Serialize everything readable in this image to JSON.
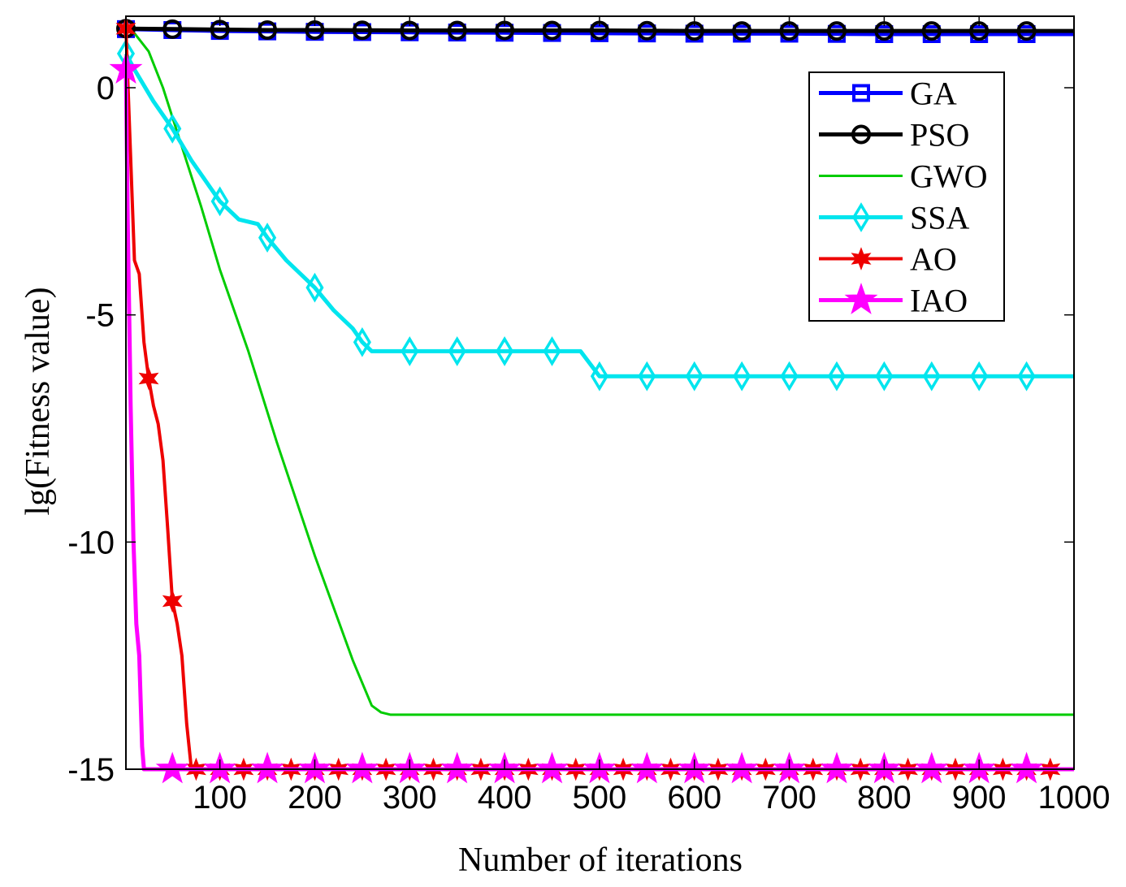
{
  "chart_data": {
    "type": "line",
    "title": "",
    "xlabel": "Number of iterations",
    "ylabel": "lg(Fitness value)",
    "xlim": [
      1,
      1000
    ],
    "ylim": [
      -15,
      1.3
    ],
    "xticks": [
      100,
      200,
      300,
      400,
      500,
      600,
      700,
      800,
      900,
      1000
    ],
    "xtick_labels": [
      "100",
      "200",
      "300",
      "400",
      "500",
      "600",
      "700",
      "800",
      "900",
      "1000"
    ],
    "yticks": [
      0,
      -5,
      -10,
      -15
    ],
    "ytick_labels": [
      "0",
      "-5",
      "-10",
      "-15"
    ],
    "grid": false,
    "legend_position": "top-right",
    "series": [
      {
        "name": "GA",
        "color": "#0000ff",
        "marker": "square",
        "line_width": "thick",
        "x": [
          1,
          50,
          100,
          150,
          200,
          300,
          400,
          500,
          600,
          700,
          800,
          900,
          1000
        ],
        "y": [
          1.29,
          1.27,
          1.25,
          1.24,
          1.23,
          1.22,
          1.21,
          1.2,
          1.19,
          1.19,
          1.18,
          1.18,
          1.18
        ],
        "marker_x": [
          1,
          50,
          100,
          150,
          200,
          250,
          300,
          350,
          400,
          450,
          500,
          550,
          600,
          650,
          700,
          750,
          800,
          850,
          900,
          950
        ]
      },
      {
        "name": "PSO",
        "color": "#000000",
        "marker": "circle",
        "line_width": "thick",
        "x": [
          1,
          50,
          100,
          150,
          200,
          300,
          400,
          500,
          600,
          700,
          800,
          900,
          1000
        ],
        "y": [
          1.3,
          1.29,
          1.28,
          1.27,
          1.27,
          1.26,
          1.26,
          1.26,
          1.25,
          1.25,
          1.25,
          1.25,
          1.25
        ],
        "marker_x": [
          1,
          50,
          100,
          150,
          200,
          250,
          300,
          350,
          400,
          450,
          500,
          550,
          600,
          650,
          700,
          750,
          800,
          850,
          900,
          950
        ]
      },
      {
        "name": "GWO",
        "color": "#00cc00",
        "marker": "none",
        "line_width": "thin",
        "x": [
          1,
          10,
          25,
          40,
          60,
          80,
          100,
          130,
          160,
          200,
          240,
          260,
          270,
          280,
          300,
          1000
        ],
        "y": [
          1.25,
          1.2,
          0.8,
          0.0,
          -1.3,
          -2.6,
          -4.0,
          -5.8,
          -7.8,
          -10.3,
          -12.6,
          -13.6,
          -13.75,
          -13.8,
          -13.8,
          -13.8
        ],
        "marker_x": []
      },
      {
        "name": "SSA",
        "color": "#00e5ee",
        "marker": "diamond",
        "line_width": "thick",
        "x": [
          1,
          10,
          30,
          50,
          70,
          100,
          120,
          140,
          150,
          170,
          200,
          220,
          240,
          250,
          260,
          300,
          480,
          500,
          1000
        ],
        "y": [
          0.75,
          0.4,
          -0.3,
          -0.9,
          -1.6,
          -2.5,
          -2.9,
          -3.0,
          -3.3,
          -3.8,
          -4.4,
          -4.9,
          -5.3,
          -5.6,
          -5.8,
          -5.8,
          -5.8,
          -6.35,
          -6.35
        ],
        "marker_x": [
          1,
          50,
          100,
          150,
          200,
          250,
          300,
          350,
          400,
          450,
          500,
          550,
          600,
          650,
          700,
          750,
          800,
          850,
          900,
          950
        ]
      },
      {
        "name": "AO",
        "color": "#ee0000",
        "marker": "hexstar",
        "line_width": "medium",
        "x": [
          1,
          5,
          10,
          15,
          20,
          25,
          30,
          35,
          40,
          45,
          50,
          55,
          60,
          65,
          70,
          75,
          80,
          1000
        ],
        "y": [
          1.3,
          -1.0,
          -3.8,
          -4.1,
          -5.6,
          -6.4,
          -7.0,
          -7.4,
          -8.2,
          -9.7,
          -11.3,
          -11.8,
          -12.5,
          -14.0,
          -15.0,
          -15.0,
          -15.0,
          -15.0
        ],
        "marker_x": [
          1,
          25,
          50,
          75,
          100,
          125,
          150,
          175,
          200,
          225,
          250,
          275,
          300,
          325,
          350,
          375,
          400,
          425,
          450,
          475,
          500,
          525,
          550,
          575,
          600,
          625,
          650,
          675,
          700,
          725,
          750,
          775,
          800,
          825,
          850,
          875,
          900,
          925,
          950,
          975
        ]
      },
      {
        "name": "IAO",
        "color": "#ff00ff",
        "marker": "star",
        "line_width": "thick",
        "x": [
          1,
          3,
          6,
          9,
          12,
          15,
          18,
          20,
          50,
          1000
        ],
        "y": [
          0.4,
          -3.0,
          -7.0,
          -10.0,
          -11.8,
          -12.5,
          -14.5,
          -15.0,
          -15.0,
          -15.0
        ],
        "marker_x": [
          1,
          50,
          100,
          150,
          200,
          250,
          300,
          350,
          400,
          450,
          500,
          550,
          600,
          650,
          700,
          750,
          800,
          850,
          900,
          950
        ]
      }
    ]
  }
}
